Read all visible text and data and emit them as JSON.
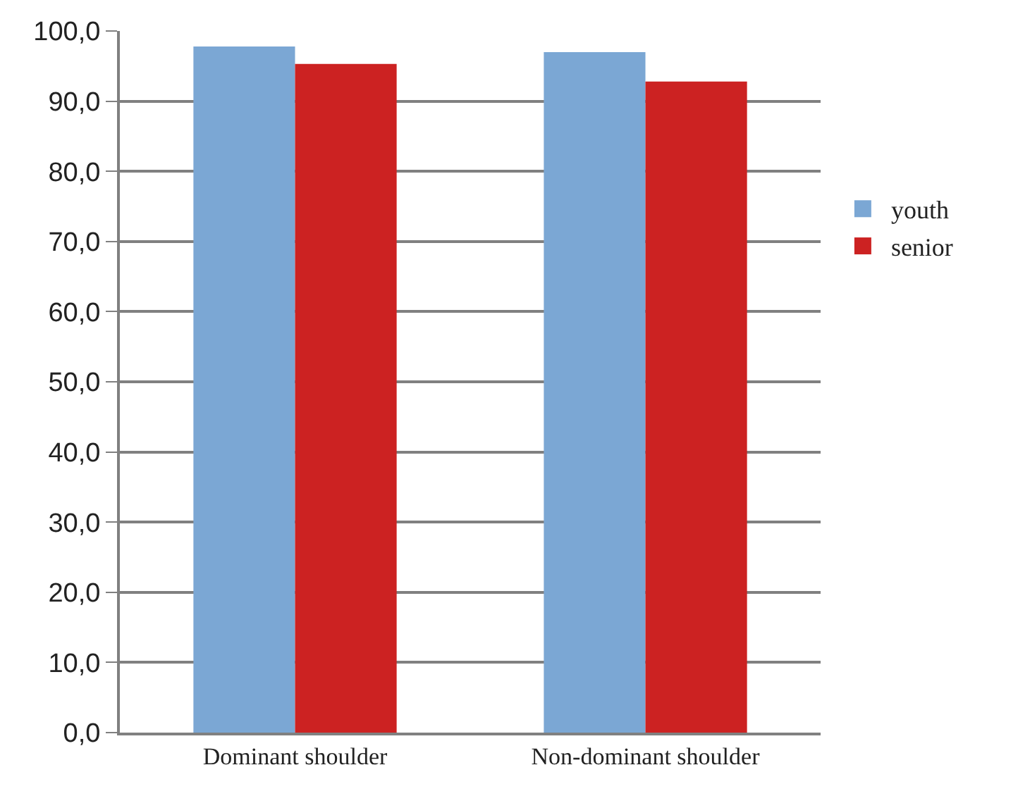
{
  "chart_data": {
    "type": "bar",
    "categories": [
      "Dominant shoulder",
      "Non-dominant shoulder"
    ],
    "series": [
      {
        "name": "youth",
        "color": "#7ba7d4",
        "values": [
          97.8,
          97.0
        ]
      },
      {
        "name": "senior",
        "color": "#cc2222",
        "values": [
          95.3,
          92.8
        ]
      }
    ],
    "ylim": [
      0,
      100
    ],
    "yticks": [
      {
        "value": 0,
        "label": "0,0"
      },
      {
        "value": 10,
        "label": "10,0"
      },
      {
        "value": 20,
        "label": "20,0"
      },
      {
        "value": 30,
        "label": "30,0"
      },
      {
        "value": 40,
        "label": "40,0"
      },
      {
        "value": 50,
        "label": "50,0"
      },
      {
        "value": 60,
        "label": "60,0"
      },
      {
        "value": 70,
        "label": "70,0"
      },
      {
        "value": 80,
        "label": "80,0"
      },
      {
        "value": 90,
        "label": "90,0"
      },
      {
        "value": 100,
        "label": "100,0"
      }
    ],
    "grid": "y",
    "legend": "right"
  }
}
